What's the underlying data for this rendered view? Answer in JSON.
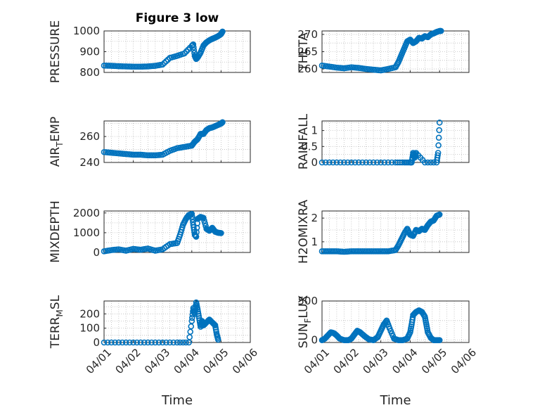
{
  "figure_title": "Figure 3 low",
  "colors": {
    "marker": "#0072BD"
  },
  "x_tick_labels": [
    "04/01",
    "04/02",
    "04/03",
    "04/04",
    "04/05",
    "04/06"
  ],
  "chart_data": [
    {
      "type": "scatter",
      "title": "Figure 3 low",
      "ylabel": "PRESSURE",
      "xlabel": "",
      "ylim": [
        800,
        1000
      ],
      "yticks": [
        800,
        900,
        1000
      ],
      "grid": true,
      "x_points": [
        0,
        0.25,
        0.5,
        0.75,
        1.0,
        1.25,
        1.5,
        1.75,
        2.0,
        2.25,
        2.5,
        2.75,
        3.0,
        3.05,
        3.1,
        3.15,
        3.2,
        3.3,
        3.4,
        3.5,
        3.6,
        3.7,
        3.8,
        3.9,
        4.0,
        4.05
      ],
      "y_points": [
        833,
        832,
        830,
        829,
        828,
        828,
        829,
        832,
        838,
        870,
        880,
        892,
        928,
        935,
        880,
        865,
        872,
        895,
        930,
        945,
        955,
        962,
        968,
        975,
        985,
        997
      ]
    },
    {
      "type": "scatter",
      "ylabel": "THETA",
      "xlabel": "",
      "ylim": [
        259,
        271
      ],
      "yticks": [
        260,
        265,
        270
      ],
      "grid": true,
      "x_points": [
        0,
        0.25,
        0.5,
        0.75,
        1.0,
        1.25,
        1.5,
        1.75,
        2.0,
        2.25,
        2.5,
        2.6,
        2.7,
        2.8,
        2.9,
        3.0,
        3.1,
        3.2,
        3.3,
        3.4,
        3.5,
        3.6,
        3.7,
        3.8,
        3.9,
        4.0,
        4.05
      ],
      "y_points": [
        261,
        260.7,
        260.4,
        260.2,
        260.5,
        260.3,
        260,
        259.8,
        259.6,
        260,
        260.5,
        262,
        264,
        266,
        268,
        268.5,
        267.5,
        268,
        269,
        268.8,
        269.5,
        269.2,
        270,
        270.3,
        270.7,
        271,
        271
      ]
    },
    {
      "type": "scatter",
      "ylabel": "AIR_TEMP",
      "ylabel_main": "AIR",
      "ylabel_sub": "T",
      "ylabel_rest": "EMP",
      "xlabel": "",
      "ylim": [
        240,
        272
      ],
      "yticks": [
        240,
        260
      ],
      "grid": true,
      "x_points": [
        0,
        0.25,
        0.5,
        0.75,
        1.0,
        1.25,
        1.5,
        1.75,
        2.0,
        2.25,
        2.5,
        2.75,
        3.0,
        3.1,
        3.2,
        3.3,
        3.4,
        3.5,
        3.6,
        3.7,
        3.8,
        3.9,
        4.0,
        4.05
      ],
      "y_points": [
        248,
        247.5,
        247,
        246.5,
        246,
        246,
        245.5,
        245.5,
        246,
        249,
        251,
        252,
        253,
        256,
        258,
        262,
        262,
        265,
        266.5,
        267,
        268,
        269,
        270,
        271
      ]
    },
    {
      "type": "scatter",
      "ylabel": "RAINFALL",
      "xlabel": "",
      "ylim": [
        0,
        1.3
      ],
      "yticks": [
        0,
        0.5,
        1
      ],
      "grid": true,
      "x_points": [
        0,
        0.5,
        1.0,
        1.5,
        2.0,
        2.5,
        2.8,
        3.0,
        3.05,
        3.1,
        3.15,
        3.2,
        3.5,
        3.9,
        3.95,
        4.0
      ],
      "y_points": [
        0,
        0,
        0,
        0,
        0,
        0,
        0,
        0,
        0,
        0.3,
        0.15,
        0.3,
        0,
        0,
        0.3,
        1.25
      ]
    },
    {
      "type": "scatter",
      "ylabel": "MIXDEPTH",
      "xlabel": "",
      "ylim": [
        0,
        2100
      ],
      "yticks": [
        0,
        1000,
        2000
      ],
      "grid": true,
      "x_points": [
        0,
        0.25,
        0.5,
        0.75,
        1.0,
        1.25,
        1.5,
        1.75,
        2.0,
        2.25,
        2.5,
        2.6,
        2.7,
        2.8,
        2.9,
        3.0,
        3.05,
        3.1,
        3.15,
        3.2,
        3.3,
        3.4,
        3.5,
        3.6,
        3.7,
        3.8,
        3.9,
        4.0
      ],
      "y_points": [
        60,
        120,
        160,
        90,
        180,
        140,
        200,
        90,
        160,
        420,
        480,
        900,
        1400,
        1700,
        1900,
        1950,
        1400,
        900,
        800,
        1700,
        1800,
        1750,
        1200,
        1100,
        1250,
        1050,
        1000,
        980
      ]
    },
    {
      "type": "scatter",
      "ylabel": "H2OMIXRA",
      "xlabel": "",
      "ylim": [
        0.55,
        2.3
      ],
      "yticks": [
        1,
        2
      ],
      "grid": true,
      "x_points": [
        0,
        0.25,
        0.5,
        0.75,
        1.0,
        1.25,
        1.5,
        1.75,
        2.0,
        2.25,
        2.5,
        2.6,
        2.7,
        2.8,
        2.9,
        3.0,
        3.1,
        3.2,
        3.3,
        3.4,
        3.5,
        3.6,
        3.7,
        3.8,
        3.9,
        4.0
      ],
      "y_points": [
        0.6,
        0.6,
        0.6,
        0.58,
        0.6,
        0.6,
        0.6,
        0.6,
        0.6,
        0.6,
        0.65,
        0.85,
        1.1,
        1.35,
        1.55,
        1.3,
        1.25,
        1.5,
        1.45,
        1.55,
        1.5,
        1.7,
        1.85,
        1.9,
        2.1,
        2.15
      ]
    },
    {
      "type": "scatter",
      "ylabel": "TERR_MSL",
      "ylabel_main": "TERR",
      "ylabel_sub": "M",
      "ylabel_rest": "SL",
      "xlabel": "Time",
      "ylim": [
        0,
        290
      ],
      "yticks": [
        0,
        100,
        200
      ],
      "grid": true,
      "x_points": [
        0,
        0.5,
        1.0,
        1.5,
        2.0,
        2.5,
        2.9,
        3.0,
        3.05,
        3.1,
        3.15,
        3.2,
        3.25,
        3.3,
        3.35,
        3.4,
        3.5,
        3.6,
        3.7,
        3.8,
        3.85,
        3.9
      ],
      "y_points": [
        0,
        0,
        0,
        0,
        0,
        0,
        0,
        150,
        240,
        200,
        280,
        230,
        170,
        110,
        150,
        120,
        140,
        160,
        140,
        120,
        60,
        20
      ]
    },
    {
      "type": "scatter",
      "ylabel": "SUN_FLUX",
      "ylabel_main": "SUN",
      "ylabel_sub": "F",
      "ylabel_rest": "LUX",
      "xlabel": "Time",
      "ylim": [
        -30,
        500
      ],
      "yticks": [
        0,
        500
      ],
      "grid": true,
      "x_points": [
        0,
        0.1,
        0.2,
        0.3,
        0.4,
        0.5,
        0.6,
        0.75,
        0.9,
        1.0,
        1.1,
        1.2,
        1.3,
        1.45,
        1.6,
        1.75,
        1.9,
        2.0,
        2.1,
        2.2,
        2.3,
        2.45,
        2.6,
        2.75,
        2.9,
        3.0,
        3.05,
        3.1,
        3.2,
        3.3,
        3.4,
        3.5,
        3.55,
        3.6,
        3.7,
        3.8,
        3.9,
        4.0
      ],
      "y_points": [
        0,
        20,
        60,
        100,
        90,
        60,
        20,
        0,
        0,
        20,
        70,
        120,
        100,
        50,
        10,
        0,
        40,
        120,
        200,
        250,
        150,
        20,
        0,
        0,
        20,
        100,
        200,
        320,
        360,
        380,
        360,
        300,
        200,
        100,
        30,
        0,
        0,
        0
      ]
    }
  ]
}
